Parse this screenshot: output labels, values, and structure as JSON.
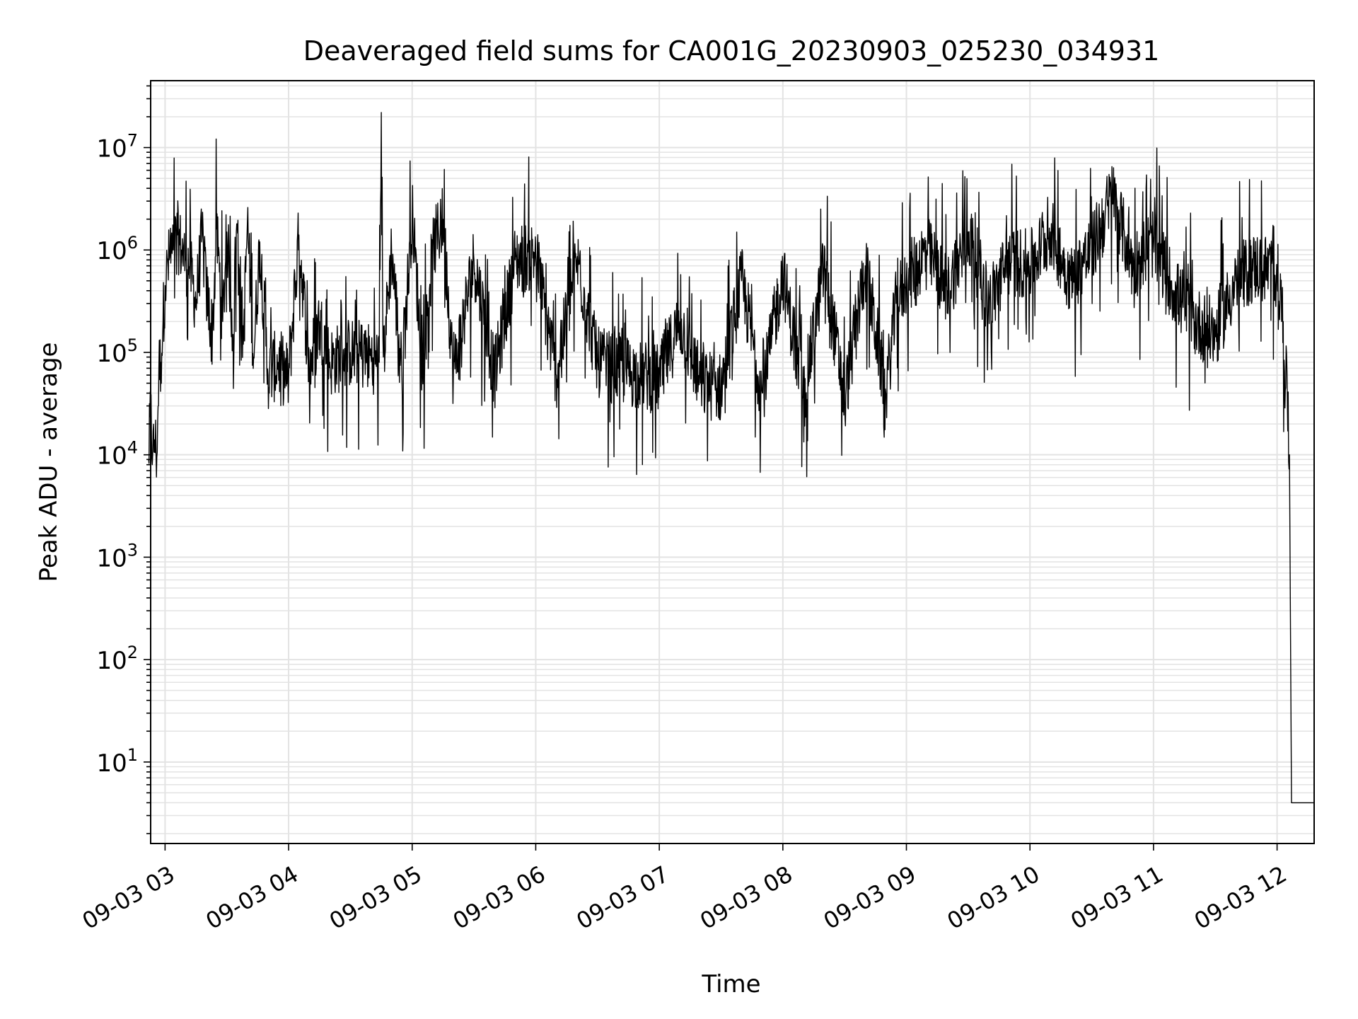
{
  "chart_data": {
    "type": "line",
    "title": "Deaveraged field sums for CA001G_20230903_025230_034931",
    "xlabel": "Time",
    "ylabel": "Peak ADU - average",
    "yscale": "log",
    "grid": true,
    "legend": "none",
    "xlim": [
      "2023-09-03 02:53",
      "2023-09-03 12:18"
    ],
    "ylim": [
      1.6,
      45000000
    ],
    "x_ticks": [
      {
        "value": "2023-09-03 03:00",
        "label": "09-03 03"
      },
      {
        "value": "2023-09-03 04:00",
        "label": "09-03 04"
      },
      {
        "value": "2023-09-03 05:00",
        "label": "09-03 05"
      },
      {
        "value": "2023-09-03 06:00",
        "label": "09-03 06"
      },
      {
        "value": "2023-09-03 07:00",
        "label": "09-03 07"
      },
      {
        "value": "2023-09-03 08:00",
        "label": "09-03 08"
      },
      {
        "value": "2023-09-03 09:00",
        "label": "09-03 09"
      },
      {
        "value": "2023-09-03 10:00",
        "label": "09-03 10"
      },
      {
        "value": "2023-09-03 11:00",
        "label": "09-03 11"
      },
      {
        "value": "2023-09-03 12:00",
        "label": "09-03 12"
      }
    ],
    "y_ticks": [
      {
        "value": 10,
        "base": "10",
        "exp": "1"
      },
      {
        "value": 100,
        "base": "10",
        "exp": "2"
      },
      {
        "value": 1000,
        "base": "10",
        "exp": "3"
      },
      {
        "value": 10000,
        "base": "10",
        "exp": "4"
      },
      {
        "value": 100000,
        "base": "10",
        "exp": "5"
      },
      {
        "value": 1000000,
        "base": "10",
        "exp": "6"
      },
      {
        "value": 10000000,
        "base": "10",
        "exp": "7"
      }
    ],
    "series": [
      {
        "color": "#000000",
        "points": [
          [
            "2023-09-03 02:52",
            9000
          ],
          [
            "2023-09-03 02:53",
            28000
          ],
          [
            "2023-09-03 02:54",
            10000
          ],
          [
            "2023-09-03 02:55",
            14000
          ],
          [
            "2023-09-03 02:56",
            9500
          ],
          [
            "2023-09-03 02:57",
            70000
          ],
          [
            "2023-09-03 02:58",
            80000
          ],
          [
            "2023-09-03 02:59",
            200000
          ],
          [
            "2023-09-03 03:00",
            450000
          ],
          [
            "2023-09-03 03:02",
            800000
          ],
          [
            "2023-09-03 03:04",
            1000000
          ],
          [
            "2023-09-03 03:06",
            1400000
          ],
          [
            "2023-09-03 03:08",
            1000000
          ],
          [
            "2023-09-03 03:10",
            800000
          ],
          [
            "2023-09-03 03:12",
            700000
          ],
          [
            "2023-09-03 03:15",
            300000
          ],
          [
            "2023-09-03 03:18",
            1400000
          ],
          [
            "2023-09-03 03:20",
            400000
          ],
          [
            "2023-09-03 03:23",
            150000
          ],
          [
            "2023-09-03 03:25",
            1600000
          ],
          [
            "2023-09-03 03:28",
            200000
          ],
          [
            "2023-09-03 03:30",
            1500000
          ],
          [
            "2023-09-03 03:33",
            150000
          ],
          [
            "2023-09-03 03:35",
            1800000
          ],
          [
            "2023-09-03 03:38",
            120000
          ],
          [
            "2023-09-03 03:40",
            1900000
          ],
          [
            "2023-09-03 03:43",
            90000
          ],
          [
            "2023-09-03 03:46",
            1200000
          ],
          [
            "2023-09-03 03:50",
            60000
          ],
          [
            "2023-09-03 03:55",
            80000
          ],
          [
            "2023-09-03 04:00",
            55000
          ],
          [
            "2023-09-03 04:05",
            1400000
          ],
          [
            "2023-09-03 04:10",
            70000
          ],
          [
            "2023-09-03 04:15",
            200000
          ],
          [
            "2023-09-03 04:20",
            80000
          ],
          [
            "2023-09-03 04:30",
            100000
          ],
          [
            "2023-09-03 04:40",
            90000
          ],
          [
            "2023-09-03 04:44",
            80000
          ],
          [
            "2023-09-03 04:45",
            22000000
          ],
          [
            "2023-09-03 04:46",
            90000
          ],
          [
            "2023-09-03 04:50",
            1000000
          ],
          [
            "2023-09-03 04:55",
            60000
          ],
          [
            "2023-09-03 05:00",
            2300000
          ],
          [
            "2023-09-03 05:05",
            70000
          ],
          [
            "2023-09-03 05:10",
            1000000
          ],
          [
            "2023-09-03 05:15",
            2000000
          ],
          [
            "2023-09-03 05:20",
            60000
          ],
          [
            "2023-09-03 05:30",
            800000
          ],
          [
            "2023-09-03 05:40",
            60000
          ],
          [
            "2023-09-03 05:50",
            800000
          ],
          [
            "2023-09-03 06:00",
            900000
          ],
          [
            "2023-09-03 06:10",
            60000
          ],
          [
            "2023-09-03 06:20",
            800000
          ],
          [
            "2023-09-03 06:30",
            80000
          ],
          [
            "2023-09-03 06:40",
            70000
          ],
          [
            "2023-09-03 06:50",
            60000
          ],
          [
            "2023-09-03 07:00",
            55000
          ],
          [
            "2023-09-03 07:10",
            200000
          ],
          [
            "2023-09-03 07:20",
            50000
          ],
          [
            "2023-09-03 07:30",
            45000
          ],
          [
            "2023-09-03 07:40",
            500000
          ],
          [
            "2023-09-03 07:50",
            40000
          ],
          [
            "2023-09-03 08:00",
            600000
          ],
          [
            "2023-09-03 08:10",
            35000
          ],
          [
            "2023-09-03 08:20",
            700000
          ],
          [
            "2023-09-03 08:30",
            35000
          ],
          [
            "2023-09-03 08:40",
            700000
          ],
          [
            "2023-09-03 08:50",
            40000
          ],
          [
            "2023-09-03 08:55",
            300000
          ],
          [
            "2023-09-03 09:00",
            500000
          ],
          [
            "2023-09-03 09:10",
            1000000
          ],
          [
            "2023-09-03 09:20",
            400000
          ],
          [
            "2023-09-03 09:30",
            1500000
          ],
          [
            "2023-09-03 09:40",
            300000
          ],
          [
            "2023-09-03 09:50",
            800000
          ],
          [
            "2023-09-03 10:00",
            700000
          ],
          [
            "2023-09-03 10:10",
            1500000
          ],
          [
            "2023-09-03 10:20",
            500000
          ],
          [
            "2023-09-03 10:30",
            1000000
          ],
          [
            "2023-09-03 10:40",
            3500000
          ],
          [
            "2023-09-03 10:50",
            700000
          ],
          [
            "2023-09-03 11:00",
            1200000
          ],
          [
            "2023-09-03 11:10",
            400000
          ],
          [
            "2023-09-03 11:20",
            200000
          ],
          [
            "2023-09-03 11:30",
            150000
          ],
          [
            "2023-09-03 11:40",
            500000
          ],
          [
            "2023-09-03 11:50",
            700000
          ],
          [
            "2023-09-03 12:00",
            600000
          ],
          [
            "2023-09-03 12:03",
            200000
          ],
          [
            "2023-09-03 12:05",
            30000
          ],
          [
            "2023-09-03 12:06",
            10000
          ],
          [
            "2023-09-03 12:07",
            4
          ],
          [
            "2023-09-03 12:18",
            4
          ]
        ]
      }
    ]
  }
}
